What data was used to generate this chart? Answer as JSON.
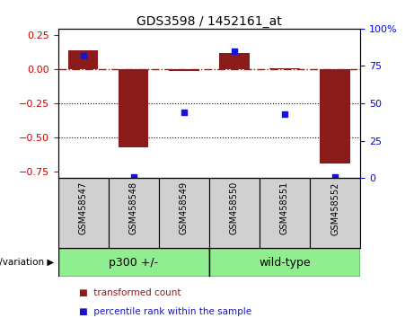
{
  "title": "GDS3598 / 1452161_at",
  "samples": [
    "GSM458547",
    "GSM458548",
    "GSM458549",
    "GSM458550",
    "GSM458551",
    "GSM458552"
  ],
  "transformed_count": [
    0.14,
    -0.575,
    -0.01,
    0.12,
    0.01,
    -0.69
  ],
  "percentile_rank": [
    82,
    1,
    44,
    85,
    43,
    1
  ],
  "group_label": "genotype/variation",
  "group_ranges": [
    {
      "label": "p300 +/-",
      "start": 0,
      "end": 2
    },
    {
      "label": "wild-type",
      "start": 3,
      "end": 5
    }
  ],
  "bar_color": "#8B1A1A",
  "point_color": "#1515CC",
  "ylim_left": [
    -0.8,
    0.3
  ],
  "ylim_right": [
    0,
    100
  ],
  "yticks_left": [
    0.25,
    0.0,
    -0.25,
    -0.5,
    -0.75
  ],
  "yticks_right": [
    100,
    75,
    50,
    25,
    0
  ],
  "hline_y": 0.0,
  "dotted_lines": [
    -0.25,
    -0.5
  ],
  "label_bg": "#d0d0d0",
  "group_color": "#90EE90"
}
